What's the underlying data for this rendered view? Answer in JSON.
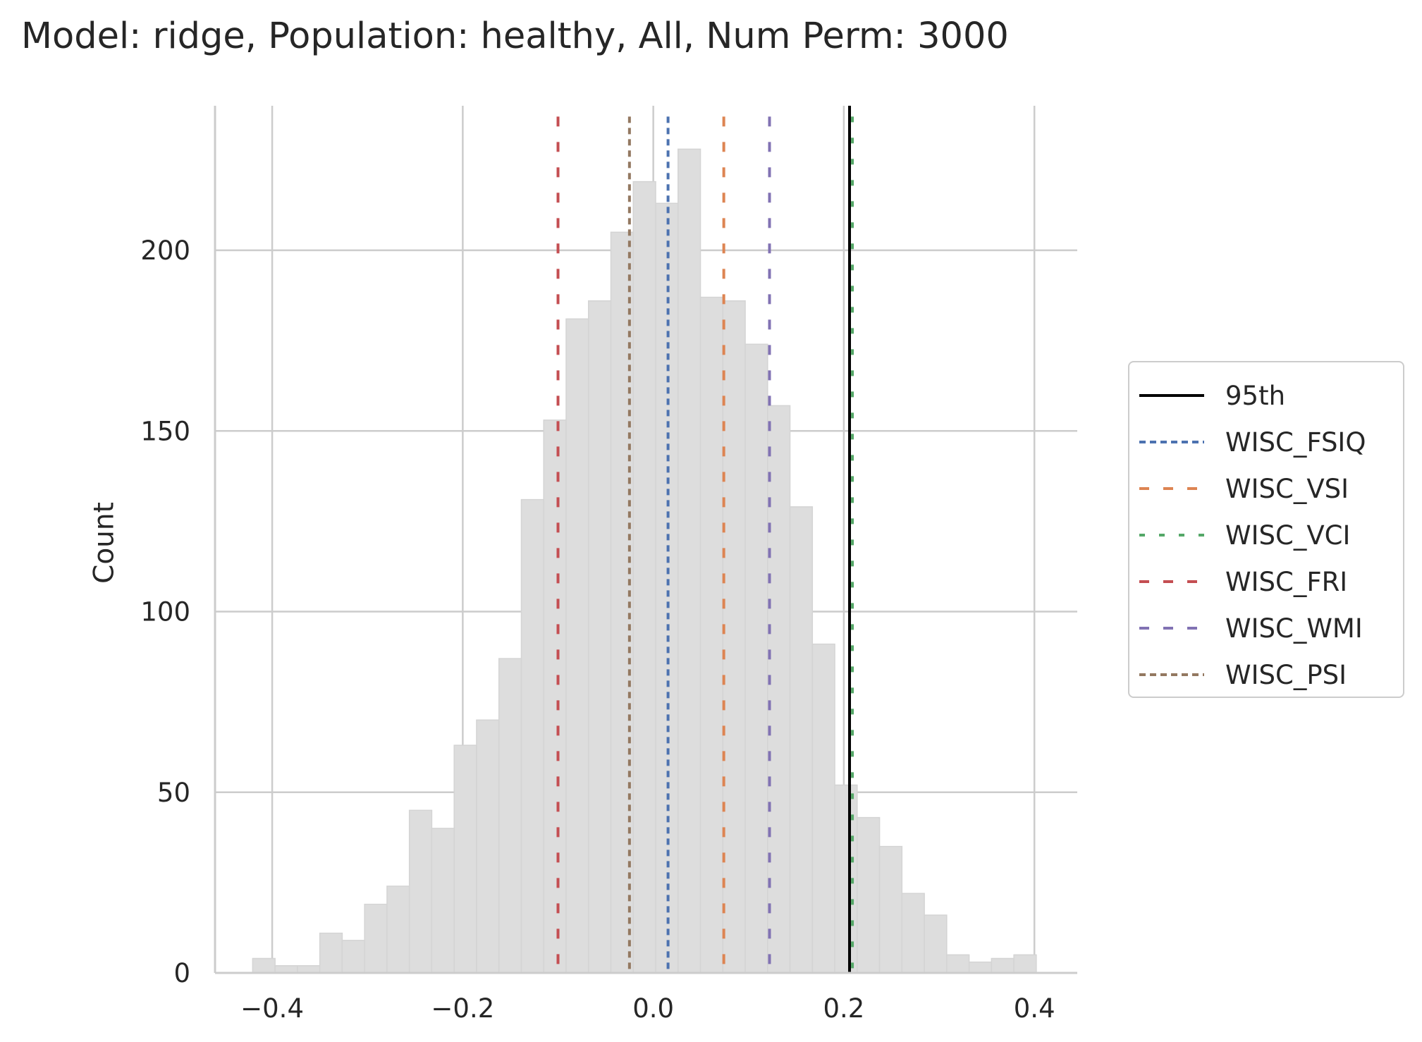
{
  "chart_data": {
    "type": "histogram",
    "title": "Model: ridge, Population: healthy, All, Num Perm: 3000",
    "xlabel": "",
    "ylabel": "Count",
    "xlim": [
      -0.46,
      0.445
    ],
    "ylim": [
      0,
      240
    ],
    "x_ticks": [
      -0.4,
      -0.2,
      0.0,
      0.2,
      0.4
    ],
    "x_tick_labels": [
      "−0.4",
      "−0.2",
      "0.0",
      "0.2",
      "0.4"
    ],
    "y_ticks": [
      0,
      50,
      100,
      150,
      200
    ],
    "y_tick_labels": [
      "0",
      "50",
      "100",
      "150",
      "200"
    ],
    "grid": true,
    "legend_position": "right, outside",
    "histogram": {
      "color": "#dddddd",
      "edge_color": "#d4d4d4",
      "bin_start": -0.4205,
      "bin_width": 0.0235,
      "counts": [
        4,
        2,
        2,
        11,
        9,
        19,
        24,
        45,
        40,
        63,
        70,
        87,
        131,
        153,
        181,
        186,
        205,
        219,
        213,
        228,
        187,
        186,
        174,
        157,
        129,
        91,
        52,
        43,
        35,
        22,
        16,
        5,
        3,
        4,
        5
      ]
    },
    "vlines": [
      {
        "name": "95th",
        "x": 0.206,
        "color": "#000000",
        "style": "solid",
        "top": 240
      },
      {
        "name": "WISC_FSIQ",
        "x": 0.0155,
        "color": "#4c72b0",
        "style": "dashed",
        "top": 237
      },
      {
        "name": "WISC_VSI",
        "x": 0.074,
        "color": "#dd8452",
        "style": "dashed",
        "top": 237
      },
      {
        "name": "WISC_VCI",
        "x": 0.209,
        "color": "#55a868",
        "style": "dashed",
        "top": 237
      },
      {
        "name": "WISC_FRI",
        "x": -0.1,
        "color": "#c44e52",
        "style": "dashed",
        "top": 237
      },
      {
        "name": "WISC_WMI",
        "x": 0.122,
        "color": "#8172b3",
        "style": "dashed",
        "top": 237
      },
      {
        "name": "WISC_PSI",
        "x": -0.025,
        "color": "#937860",
        "style": "dashed",
        "top": 237
      }
    ]
  }
}
